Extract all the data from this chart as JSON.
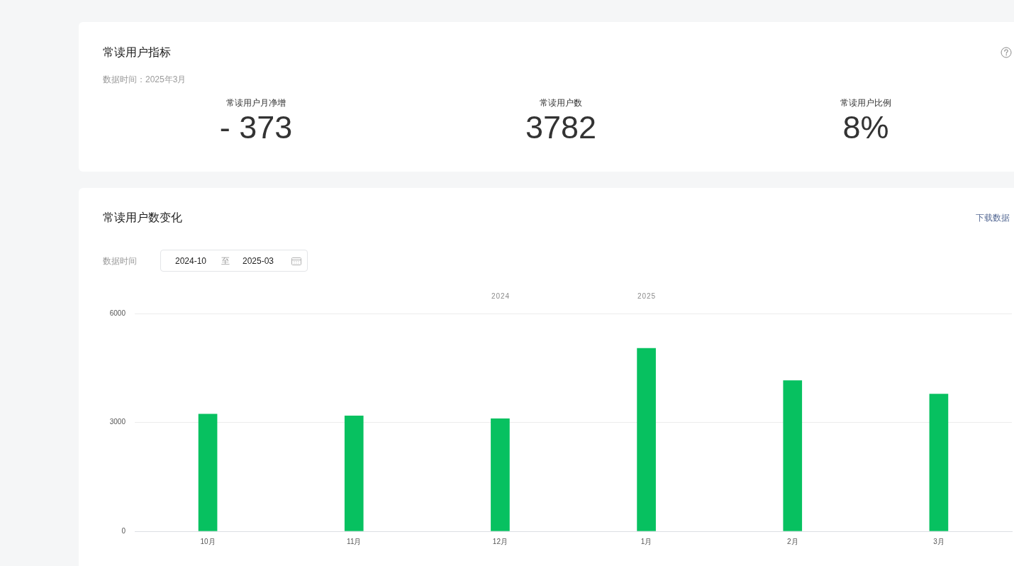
{
  "chart_data": [
    {
      "type": "other",
      "title": "常读用户指标",
      "subtitle": "数据时间：2025年3月",
      "annotations": [
        "常读用户月净增",
        "- 373",
        "常读用户数",
        "3782",
        "常读用户比例",
        "8%"
      ]
    },
    {
      "type": "bar",
      "title": "常读用户数变化",
      "categories": [
        "10月",
        "11月",
        "12月",
        "1月",
        "2月",
        "3月"
      ],
      "values": [
        3230,
        3180,
        3100,
        5040,
        4150,
        3780
      ],
      "color": "#07c160",
      "ylim": [
        0,
        6000
      ],
      "yticks": [
        0,
        3000,
        6000
      ],
      "grid": "y",
      "annotations": [
        "下载数据",
        "数据时间",
        "2024-10",
        "至",
        "2025-03",
        "2024",
        "2025"
      ]
    }
  ]
}
